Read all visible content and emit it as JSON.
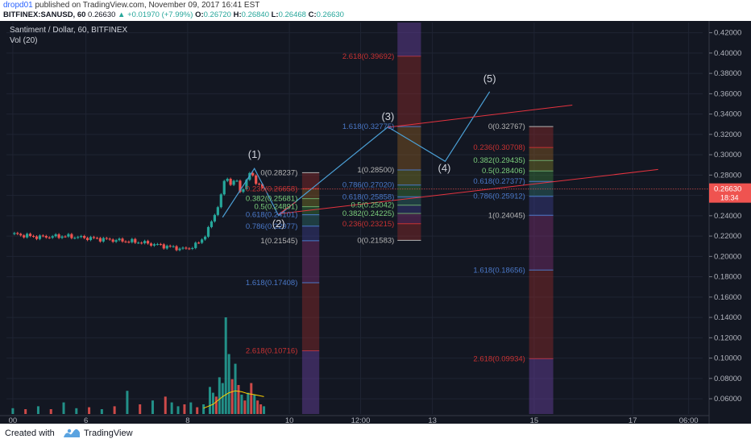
{
  "header": {
    "user": "dropd01",
    "published": "published on TradingView.com, November 09, 2017 16:41 EST",
    "symbol": "BITFINEX:SANUSD, 60",
    "last": "0.26630",
    "change": "▲ +0.01970 (+7.99%)",
    "o_label": "O:",
    "o": "0.26720",
    "h_label": "H:",
    "h": "0.26840",
    "l_label": "L:",
    "l": "0.26468",
    "c_label": "C:",
    "c": "0.26630"
  },
  "legend": {
    "series": "Santiment / Dollar, 60, BITFINEX",
    "volume": "Vol (20)"
  },
  "price_tag": {
    "value": "0.26630",
    "timer": "18:34"
  },
  "footer": {
    "created": "Created with",
    "brand": "TradingView"
  },
  "colors": {
    "background": "#131722",
    "up": "#26a69a",
    "down": "#ef5350",
    "wave": "#4b9fd5",
    "trend": "#e5333f",
    "ma": "#ffd200",
    "fib_red": "#c83232",
    "fib_blue": "#4a78c8",
    "fib_gray": "#b4b4b4"
  },
  "chart_data": {
    "type": "candlestick",
    "y_axis": {
      "ticks": [
        0.06,
        0.08,
        0.1,
        0.12,
        0.14,
        0.16,
        0.18,
        0.2,
        0.22,
        0.24,
        0.26,
        0.28,
        0.3,
        0.32,
        0.34,
        0.36,
        0.38,
        0.4,
        0.42
      ],
      "tick_labels": [
        "0.06000",
        "0.08000",
        "0.10000",
        "0.12000",
        "0.14000",
        "0.16000",
        "0.18000",
        "0.20000",
        "0.22000",
        "0.24000",
        "0.26000",
        "0.28000",
        "0.30000",
        "0.32000",
        "0.34000",
        "0.36000",
        "0.38000",
        "0.40000",
        "0.42000"
      ],
      "range": [
        0.045,
        0.43
      ]
    },
    "x_axis": {
      "labels": [
        {
          "t": 0,
          "text": "00"
        },
        {
          "t": 11.5,
          "text": "6"
        },
        {
          "t": 27.5,
          "text": "8"
        },
        {
          "t": 43.5,
          "text": "10"
        },
        {
          "t": 54.7,
          "text": "12:00"
        },
        {
          "t": 66,
          "text": "13"
        },
        {
          "t": 82,
          "text": "15"
        },
        {
          "t": 97.5,
          "text": "17"
        },
        {
          "t": 106.3,
          "text": "06:00"
        }
      ],
      "range": [
        -1,
        108.5
      ],
      "unit": "3h bars from Nov 5 00:00"
    },
    "price_segments": [
      [
        0,
        0.222
      ],
      [
        4,
        0.219
      ],
      [
        8,
        0.22
      ],
      [
        12,
        0.218
      ],
      [
        16,
        0.216
      ],
      [
        20,
        0.214
      ],
      [
        24,
        0.21
      ],
      [
        27,
        0.207
      ],
      [
        28.5,
        0.21
      ],
      [
        29.5,
        0.215
      ],
      [
        30.5,
        0.223
      ],
      [
        31.5,
        0.238
      ],
      [
        32.5,
        0.253
      ],
      [
        33,
        0.267
      ],
      [
        33.6,
        0.281
      ],
      [
        34.2,
        0.27
      ],
      [
        35,
        0.276
      ],
      [
        36,
        0.262
      ],
      [
        37,
        0.279
      ],
      [
        37.6,
        0.283
      ],
      [
        38.3,
        0.272
      ],
      [
        39,
        0.268
      ],
      [
        39.6,
        0.266
      ]
    ],
    "volume": {
      "description": "volume histogram, scaled to max bar",
      "values": [
        {
          "t": 0,
          "v": 0.06,
          "up": true
        },
        {
          "t": 2,
          "v": 0.05,
          "up": false
        },
        {
          "t": 4,
          "v": 0.08,
          "up": true
        },
        {
          "t": 6,
          "v": 0.05,
          "up": false
        },
        {
          "t": 8,
          "v": 0.12,
          "up": true
        },
        {
          "t": 10,
          "v": 0.06,
          "up": true
        },
        {
          "t": 12,
          "v": 0.07,
          "up": false
        },
        {
          "t": 14,
          "v": 0.05,
          "up": true
        },
        {
          "t": 16,
          "v": 0.08,
          "up": false
        },
        {
          "t": 18,
          "v": 0.24,
          "up": true
        },
        {
          "t": 20,
          "v": 0.1,
          "up": false
        },
        {
          "t": 22,
          "v": 0.14,
          "up": true
        },
        {
          "t": 24,
          "v": 0.18,
          "up": false
        },
        {
          "t": 25,
          "v": 0.12,
          "up": true
        },
        {
          "t": 26,
          "v": 0.08,
          "up": true
        },
        {
          "t": 27,
          "v": 0.1,
          "up": false
        },
        {
          "t": 28,
          "v": 0.12,
          "up": true
        },
        {
          "t": 29,
          "v": 0.07,
          "up": false
        },
        {
          "t": 30,
          "v": 0.1,
          "up": true
        },
        {
          "t": 31,
          "v": 0.28,
          "up": true
        },
        {
          "t": 31.5,
          "v": 0.22,
          "up": true
        },
        {
          "t": 32,
          "v": 0.18,
          "up": false
        },
        {
          "t": 32.5,
          "v": 0.38,
          "up": true
        },
        {
          "t": 33,
          "v": 0.32,
          "up": true
        },
        {
          "t": 33.5,
          "v": 1.0,
          "up": true
        },
        {
          "t": 34,
          "v": 0.62,
          "up": true
        },
        {
          "t": 34.5,
          "v": 0.36,
          "up": false
        },
        {
          "t": 35,
          "v": 0.52,
          "up": true
        },
        {
          "t": 35.5,
          "v": 0.3,
          "up": false
        },
        {
          "t": 36,
          "v": 0.2,
          "up": true
        },
        {
          "t": 36.5,
          "v": 0.14,
          "up": false
        },
        {
          "t": 37,
          "v": 0.22,
          "up": true
        },
        {
          "t": 37.5,
          "v": 0.32,
          "up": false
        },
        {
          "t": 38,
          "v": 0.2,
          "up": true
        },
        {
          "t": 38.5,
          "v": 0.14,
          "up": false
        },
        {
          "t": 39,
          "v": 0.1,
          "up": false
        },
        {
          "t": 39.5,
          "v": 0.08,
          "up": true
        }
      ],
      "ma_points": [
        [
          30,
          0.06
        ],
        [
          31.5,
          0.1
        ],
        [
          33,
          0.18
        ],
        [
          34,
          0.22
        ],
        [
          35,
          0.24
        ],
        [
          36,
          0.23
        ],
        [
          37,
          0.21
        ],
        [
          38,
          0.2
        ],
        [
          39.5,
          0.18
        ]
      ]
    },
    "waves": [
      {
        "label": "(1)",
        "t": 38.0,
        "price": 0.2875
      },
      {
        "label": "(2)",
        "t": 41.8,
        "price": 0.2415
      },
      {
        "label": "(3)",
        "t": 59.0,
        "price": 0.3278
      },
      {
        "label": "(4)",
        "t": 68.0,
        "price": 0.2944
      },
      {
        "label": "(5)",
        "t": 75.0,
        "price": 0.362
      }
    ],
    "wave_line": [
      [
        33.0,
        0.2385
      ],
      [
        38.0,
        0.2865
      ],
      [
        41.8,
        0.2402
      ],
      [
        59.0,
        0.3273
      ],
      [
        68.0,
        0.2935
      ],
      [
        75.0,
        0.362
      ]
    ],
    "trend_lines": [
      {
        "from": [
          59.0,
          0.327
        ],
        "to": [
          88.0,
          0.3488
        ]
      },
      {
        "from": [
          42.0,
          0.242
        ],
        "to": [
          101.5,
          0.2855
        ]
      }
    ],
    "fib_sets": [
      {
        "name": "fib-1",
        "levels": [
          {
            "ratio": "0",
            "price": 0.28237,
            "label": "0(0.28237)"
          },
          {
            "ratio": "0.236",
            "price": 0.26658,
            "label": "0.236(0.26658)"
          },
          {
            "ratio": "0.382",
            "price": 0.25681,
            "label": "0.382(0.25681)"
          },
          {
            "ratio": "0.5",
            "price": 0.24891,
            "label": "0.5(0.24891)"
          },
          {
            "ratio": "0.618",
            "price": 0.24101,
            "label": "0.618(0.24101)"
          },
          {
            "ratio": "0.786",
            "price": 0.22977,
            "label": "0.786(0.22977)"
          },
          {
            "ratio": "1",
            "price": 0.21545,
            "label": "1(0.21545)"
          },
          {
            "ratio": "1.618",
            "price": 0.17408,
            "label": "1.618(0.17408)"
          },
          {
            "ratio": "2.618",
            "price": 0.10716,
            "label": "2.618(0.10716)"
          }
        ]
      },
      {
        "name": "fib-2",
        "levels": [
          {
            "ratio": "2.618",
            "price": 0.39692,
            "label": "2.618(0.39692)"
          },
          {
            "ratio": "1.618",
            "price": 0.32775,
            "label": "1.618(0.32775)"
          },
          {
            "ratio": "1",
            "price": 0.285,
            "label": "1(0.28500)"
          },
          {
            "ratio": "0.786",
            "price": 0.2702,
            "label": "0.786(0.27020)"
          },
          {
            "ratio": "0.618",
            "price": 0.25858,
            "label": "0.618(0.25858)"
          },
          {
            "ratio": "0.5",
            "price": 0.25042,
            "label": "0.5(0.25042)"
          },
          {
            "ratio": "0.382",
            "price": 0.24225,
            "label": "0.382(0.24225)"
          },
          {
            "ratio": "0.236",
            "price": 0.23215,
            "label": "0.236(0.23215)"
          },
          {
            "ratio": "0",
            "price": 0.21583,
            "label": "0(0.21583)"
          }
        ]
      },
      {
        "name": "fib-3",
        "levels": [
          {
            "ratio": "0",
            "price": 0.32767,
            "label": "0(0.32767)"
          },
          {
            "ratio": "0.236",
            "price": 0.30708,
            "label": "0.236(0.30708)"
          },
          {
            "ratio": "0.382",
            "price": 0.29435,
            "label": "0.382(0.29435)"
          },
          {
            "ratio": "0.5",
            "price": 0.28406,
            "label": "0.5(0.28406)"
          },
          {
            "ratio": "0.618",
            "price": 0.27377,
            "label": "0.618(0.27377)"
          },
          {
            "ratio": "0.786",
            "price": 0.25912,
            "label": "0.786(0.25912)"
          },
          {
            "ratio": "1",
            "price": 0.24045,
            "label": "1(0.24045)"
          },
          {
            "ratio": "1.618",
            "price": 0.18656,
            "label": "1.618(0.18656)"
          },
          {
            "ratio": "2.618",
            "price": 0.09934,
            "label": "2.618(0.09934)"
          }
        ]
      }
    ],
    "grid": true
  }
}
